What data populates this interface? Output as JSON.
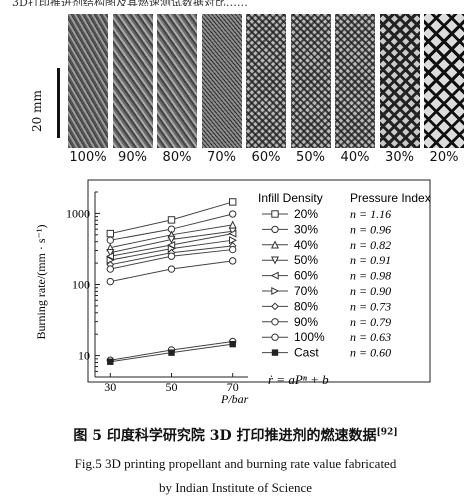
{
  "header_partial": "3D打印推进剂结构图及其燃速测试数据对比……",
  "scale_label": "20 mm",
  "samples": [
    {
      "label": "100%",
      "pattern": "diag-dense"
    },
    {
      "label": "90%",
      "pattern": "diag"
    },
    {
      "label": "80%",
      "pattern": "diag"
    },
    {
      "label": "70%",
      "pattern": "diag-fine"
    },
    {
      "label": "60%",
      "pattern": "cross"
    },
    {
      "label": "50%",
      "pattern": "cross"
    },
    {
      "label": "40%",
      "pattern": "cross"
    },
    {
      "label": "30%",
      "pattern": "grid"
    },
    {
      "label": "20%",
      "pattern": "grid-open"
    }
  ],
  "chart_data": {
    "type": "line",
    "xlabel": "P/bar",
    "ylabel": "Burning rate/(mm · s⁻¹)",
    "x_ticks": [
      30,
      50,
      70
    ],
    "y_ticks": [
      10,
      100,
      1000
    ],
    "y_scale": "log",
    "ylim": [
      5,
      2000
    ],
    "xlim": [
      25,
      75
    ],
    "legend_title": "Infill Density",
    "index_title": "Pressure Index",
    "equation": "ṙ = aPⁿ + b",
    "series": [
      {
        "name": "20%",
        "marker": "square",
        "n": "n = 1.16",
        "x": [
          30,
          50,
          70
        ],
        "y": [
          520,
          810,
          1450
        ]
      },
      {
        "name": "30%",
        "marker": "circle",
        "n": "n = 0.96",
        "x": [
          30,
          50,
          70
        ],
        "y": [
          420,
          600,
          980
        ]
      },
      {
        "name": "40%",
        "marker": "triangle-up",
        "n": "n = 0.82",
        "x": [
          30,
          50,
          70
        ],
        "y": [
          330,
          500,
          690
        ]
      },
      {
        "name": "50%",
        "marker": "triangle-down",
        "n": "n = 0.91",
        "x": [
          30,
          50,
          70
        ],
        "y": [
          280,
          430,
          560
        ]
      },
      {
        "name": "60%",
        "marker": "triangle-left",
        "n": "n = 0.98",
        "x": [
          30,
          50,
          70
        ],
        "y": [
          250,
          360,
          520
        ]
      },
      {
        "name": "70%",
        "marker": "triangle-right",
        "n": "n = 0.90",
        "x": [
          30,
          50,
          70
        ],
        "y": [
          220,
          320,
          420
        ]
      },
      {
        "name": "80%",
        "marker": "diamond",
        "n": "n = 0.73",
        "x": [
          30,
          50,
          70
        ],
        "y": [
          190,
          280,
          350
        ]
      },
      {
        "name": "90%",
        "marker": "hexagon",
        "n": "n = 0.79",
        "x": [
          30,
          50,
          70
        ],
        "y": [
          165,
          250,
          310
        ]
      },
      {
        "name": "100%",
        "marker": "circle",
        "n": "n = 0.63",
        "x": [
          30,
          50,
          70
        ],
        "y": [
          110,
          165,
          215
        ]
      },
      {
        "name": "Cast",
        "marker": "filled-square",
        "n": "n = 0.60",
        "x": [
          30,
          50,
          70
        ],
        "y": [
          8.2,
          11.0,
          14.5
        ]
      }
    ],
    "extra_low_series": [
      {
        "x": [
          30,
          50,
          70
        ],
        "y": [
          8.6,
          12.0,
          15.8
        ]
      }
    ]
  },
  "caption_cn": "图 5    印度科学研究院 3D 打印推进剂的燃速数据",
  "caption_ref": "[92]",
  "caption_en_line1": "Fig.5    3D printing propellant and burning rate value fabricated",
  "caption_en_line2": "by Indian Institute of Science"
}
